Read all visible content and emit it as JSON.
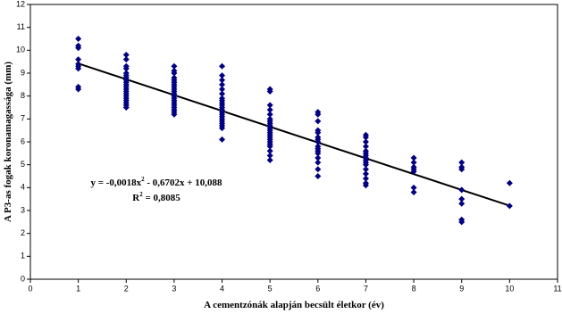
{
  "chart_data": {
    "type": "scatter",
    "x_label": "A cementzónák alapján becsült életkor (év)",
    "y_label": "A P3-as fogak koronamagassága (mm)",
    "xlim": [
      0,
      11
    ],
    "ylim": [
      0,
      12
    ],
    "xticks": [
      0,
      1,
      2,
      3,
      4,
      5,
      6,
      7,
      8,
      9,
      10,
      11
    ],
    "yticks": [
      0,
      1,
      2,
      3,
      4,
      5,
      6,
      7,
      8,
      9,
      10,
      11,
      12
    ],
    "color": "#000080",
    "x": [
      1,
      1,
      1,
      1,
      1,
      1,
      1,
      1,
      1,
      2,
      2,
      2,
      2,
      2,
      2,
      2,
      2,
      2,
      2,
      2,
      2,
      2,
      2,
      2,
      2,
      2,
      2,
      2,
      2,
      3,
      3,
      3,
      3,
      3,
      3,
      3,
      3,
      3,
      3,
      3,
      3,
      3,
      3,
      3,
      3,
      3,
      3,
      3,
      3,
      4,
      4,
      4,
      4,
      4,
      4,
      4,
      4,
      4,
      4,
      4,
      4,
      4,
      4,
      4,
      4,
      4,
      4,
      4,
      4,
      4,
      5,
      5,
      5,
      5,
      5,
      5,
      5,
      5,
      5,
      5,
      5,
      5,
      5,
      5,
      5,
      5,
      5,
      5,
      5,
      5,
      5,
      6,
      6,
      6,
      6,
      6,
      6,
      6,
      6,
      6,
      6,
      6,
      6,
      6,
      6,
      6,
      6,
      7,
      7,
      7,
      7,
      7,
      7,
      7,
      7,
      7,
      7,
      7,
      7,
      7,
      7,
      7,
      7,
      8,
      8,
      8,
      8,
      8,
      8,
      8,
      9,
      9,
      9,
      9,
      9,
      9,
      9,
      9,
      10,
      10
    ],
    "y": [
      10.5,
      10.2,
      10.1,
      9.6,
      9.4,
      9.3,
      9.2,
      8.4,
      8.3,
      9.8,
      9.6,
      9.3,
      9.2,
      9.0,
      8.9,
      8.8,
      8.7,
      8.6,
      8.5,
      8.4,
      8.3,
      8.2,
      8.1,
      8.0,
      7.9,
      7.8,
      7.7,
      7.6,
      7.5,
      9.3,
      9.1,
      9.0,
      8.8,
      8.7,
      8.6,
      8.5,
      8.4,
      8.3,
      8.2,
      8.1,
      8.0,
      7.9,
      7.8,
      7.7,
      7.6,
      7.5,
      7.4,
      7.3,
      7.2,
      9.3,
      8.9,
      8.7,
      8.5,
      8.3,
      8.1,
      7.9,
      7.8,
      7.7,
      7.6,
      7.5,
      7.4,
      7.3,
      7.2,
      7.1,
      7.0,
      6.9,
      6.8,
      6.7,
      6.6,
      6.1,
      8.3,
      8.2,
      7.6,
      7.4,
      7.2,
      7.0,
      6.9,
      6.8,
      6.7,
      6.6,
      6.5,
      6.4,
      6.3,
      6.2,
      6.1,
      6.0,
      5.9,
      5.8,
      5.6,
      5.4,
      5.2,
      7.3,
      7.2,
      6.9,
      6.5,
      6.4,
      6.2,
      6.1,
      6.0,
      5.8,
      5.7,
      5.6,
      5.5,
      5.3,
      5.1,
      4.8,
      4.5,
      6.3,
      6.2,
      6.0,
      5.8,
      5.6,
      5.5,
      5.4,
      5.3,
      5.2,
      5.1,
      5.0,
      4.8,
      4.6,
      4.4,
      4.2,
      4.1,
      5.3,
      5.1,
      4.9,
      4.8,
      4.7,
      4.0,
      3.8,
      5.1,
      4.9,
      4.8,
      3.9,
      3.5,
      3.3,
      2.6,
      2.5,
      4.2,
      3.2
    ],
    "trendline": {
      "x": [
        1,
        10
      ],
      "y": [
        9.42,
        3.21
      ]
    },
    "equation": [
      "y = -0,0018x",
      "2",
      " - 0,6702x + 10,088"
    ],
    "r_squared": [
      "R",
      "2",
      " = 0,8085"
    ]
  }
}
